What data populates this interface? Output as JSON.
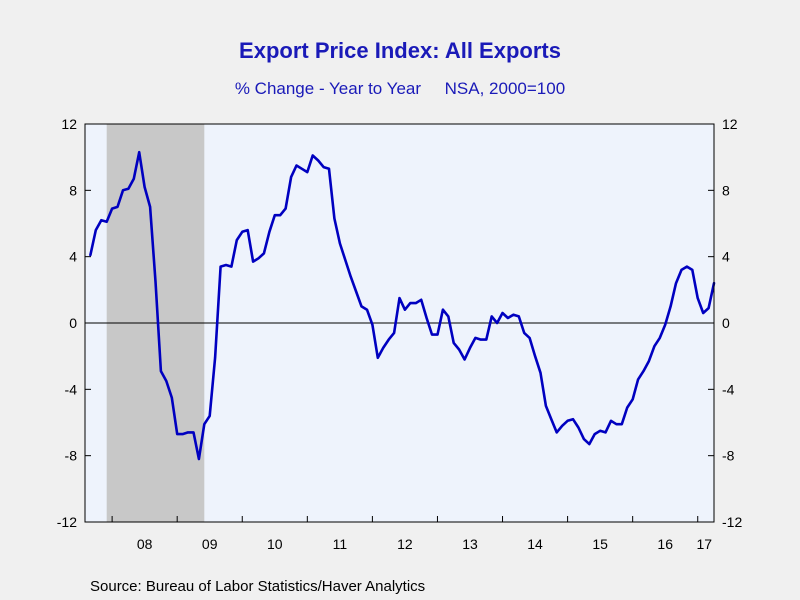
{
  "chart_data": {
    "type": "line",
    "title": "Export Price Index: All Exports",
    "subtitle": "% Change - Year to Year     NSA, 2000=100",
    "source": "Source:  Bureau of Labor Statistics/Haver Analytics",
    "ylim": [
      -12,
      12
    ],
    "yticks": [
      "12",
      "8",
      "4",
      "0",
      "-4",
      "-8",
      "-12"
    ],
    "ytick_values": [
      12,
      8,
      4,
      0,
      -4,
      -8,
      -12
    ],
    "xlim": [
      2007.5833,
      2017.25
    ],
    "x_boundaries": [
      2008,
      2009,
      2010,
      2011,
      2012,
      2013,
      2014,
      2015,
      2016,
      2017
    ],
    "xtick_labels": [
      {
        "label": "08",
        "x": 2008.5
      },
      {
        "label": "09",
        "x": 2009.5
      },
      {
        "label": "10",
        "x": 2010.5
      },
      {
        "label": "11",
        "x": 2011.5
      },
      {
        "label": "12",
        "x": 2012.5
      },
      {
        "label": "13",
        "x": 2013.5
      },
      {
        "label": "14",
        "x": 2014.5
      },
      {
        "label": "15",
        "x": 2015.5
      },
      {
        "label": "16",
        "x": 2016.5
      },
      {
        "label": "17",
        "x": 2017.1
      }
    ],
    "recession": {
      "start": 2007.9167,
      "end": 2009.4167
    },
    "zero_line": true,
    "grid": false,
    "series": [
      {
        "color": "#0000c0",
        "x": [
          2007.6667,
          2007.75,
          2007.8333,
          2007.9167,
          2008.0,
          2008.0833,
          2008.1667,
          2008.25,
          2008.3333,
          2008.4167,
          2008.5,
          2008.5833,
          2008.6667,
          2008.75,
          2008.8333,
          2008.9167,
          2009.0,
          2009.0833,
          2009.1667,
          2009.25,
          2009.3333,
          2009.4167,
          2009.5,
          2009.5833,
          2009.6667,
          2009.75,
          2009.8333,
          2009.9167,
          2010.0,
          2010.0833,
          2010.1667,
          2010.25,
          2010.3333,
          2010.4167,
          2010.5,
          2010.5833,
          2010.6667,
          2010.75,
          2010.8333,
          2010.9167,
          2011.0,
          2011.0833,
          2011.1667,
          2011.25,
          2011.3333,
          2011.4167,
          2011.5,
          2011.5833,
          2011.6667,
          2011.75,
          2011.8333,
          2011.9167,
          2012.0,
          2012.0833,
          2012.1667,
          2012.25,
          2012.3333,
          2012.4167,
          2012.5,
          2012.5833,
          2012.6667,
          2012.75,
          2012.8333,
          2012.9167,
          2013.0,
          2013.0833,
          2013.1667,
          2013.25,
          2013.3333,
          2013.4167,
          2013.5,
          2013.5833,
          2013.6667,
          2013.75,
          2013.8333,
          2013.9167,
          2014.0,
          2014.0833,
          2014.1667,
          2014.25,
          2014.3333,
          2014.4167,
          2014.5,
          2014.5833,
          2014.6667,
          2014.75,
          2014.8333,
          2014.9167,
          2015.0,
          2015.0833,
          2015.1667,
          2015.25,
          2015.3333,
          2015.4167,
          2015.5,
          2015.5833,
          2015.6667,
          2015.75,
          2015.8333,
          2015.9167,
          2016.0,
          2016.0833,
          2016.1667,
          2016.25,
          2016.3333,
          2016.4167,
          2016.5,
          2016.5833,
          2016.6667,
          2016.75,
          2016.8333,
          2016.9167,
          2017.0,
          2017.0833,
          2017.1667,
          2017.25
        ],
        "y": [
          4.1,
          5.6,
          6.2,
          6.1,
          6.9,
          7.0,
          8.0,
          8.1,
          8.7,
          10.3,
          8.2,
          7.0,
          2.5,
          -2.9,
          -3.5,
          -4.5,
          -6.7,
          -6.7,
          -6.6,
          -6.6,
          -8.2,
          -6.1,
          -5.6,
          -2.1,
          3.4,
          3.5,
          3.4,
          5.0,
          5.5,
          5.6,
          3.7,
          3.9,
          4.2,
          5.5,
          6.5,
          6.5,
          6.9,
          8.8,
          9.5,
          9.3,
          9.1,
          10.1,
          9.8,
          9.4,
          9.3,
          6.3,
          4.8,
          3.8,
          2.8,
          1.9,
          1.0,
          0.8,
          -0.1,
          -2.1,
          -1.5,
          -1.0,
          -0.6,
          1.5,
          0.8,
          1.2,
          1.2,
          1.4,
          0.3,
          -0.7,
          -0.7,
          0.8,
          0.4,
          -1.2,
          -1.6,
          -2.2,
          -1.5,
          -0.9,
          -1.0,
          -1.0,
          0.4,
          0.0,
          0.6,
          0.3,
          0.5,
          0.4,
          -0.6,
          -0.9,
          -2.0,
          -3.0,
          -5.0,
          -5.8,
          -6.6,
          -6.2,
          -5.9,
          -5.8,
          -6.3,
          -7.0,
          -7.3,
          -6.7,
          -6.5,
          -6.6,
          -5.9,
          -6.1,
          -6.1,
          -5.1,
          -4.6,
          -3.4,
          -2.9,
          -2.3,
          -1.4,
          -0.9,
          -0.1,
          1.0,
          2.4,
          3.2,
          3.4,
          3.2,
          1.5,
          0.6,
          0.9,
          2.4
        ]
      }
    ]
  }
}
